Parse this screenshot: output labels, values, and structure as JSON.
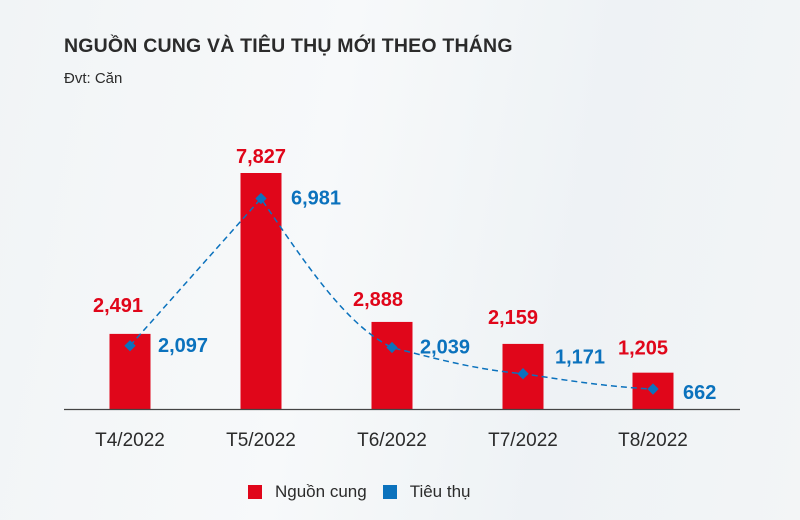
{
  "header": {
    "title": "NGUỒN CUNG VÀ TIÊU THỤ MỚI THEO THÁNG",
    "unit": "Đvt: Căn"
  },
  "legend": {
    "items": [
      {
        "label": "Nguồn cung",
        "color": "#e0061a"
      },
      {
        "label": "Tiêu thụ",
        "color": "#0b72bd"
      }
    ]
  },
  "colors": {
    "supply": "#e0061a",
    "consumption": "#0b72bd",
    "axis": "#444444",
    "text": "#2b2b2b"
  },
  "chart_data": {
    "type": "bar",
    "title": "NGUỒN CUNG VÀ TIÊU THỤ MỚI THEO THÁNG",
    "subtitle": "Đvt: Căn",
    "xlabel": "",
    "ylabel": "",
    "categories": [
      "T4/2022",
      "T5/2022",
      "T6/2022",
      "T7/2022",
      "T8/2022"
    ],
    "series": [
      {
        "name": "Nguồn cung",
        "type": "bar",
        "color": "#e0061a",
        "values": [
          2491,
          7827,
          2888,
          2159,
          1205
        ],
        "labels": [
          "2,491",
          "7,827",
          "2,888",
          "2,159",
          "1,205"
        ]
      },
      {
        "name": "Tiêu thụ",
        "type": "line",
        "style": "dashed",
        "marker": "diamond",
        "color": "#0b72bd",
        "values": [
          2097,
          6981,
          2039,
          1171,
          662
        ],
        "labels": [
          "2,097",
          "6,981",
          "2,039",
          "1,171",
          "662"
        ]
      }
    ],
    "ylim": [
      0,
      7827
    ],
    "grid": false,
    "legend_position": "bottom"
  }
}
